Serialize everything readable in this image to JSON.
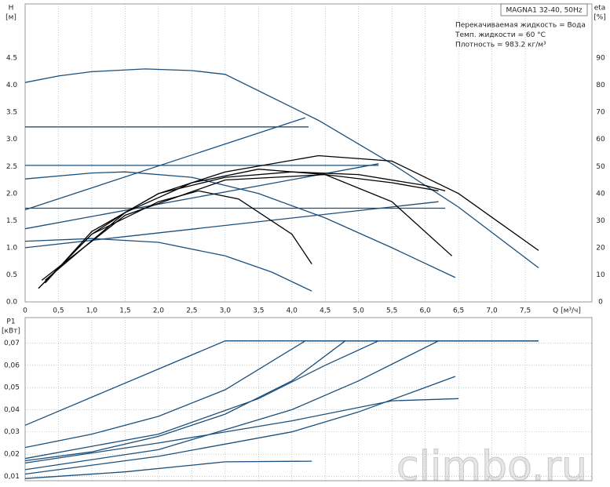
{
  "watermark": "climbo.ru",
  "chart_data": [
    {
      "type": "line",
      "title": "MAGNA1 32-40, 50Hz",
      "annotations": [
        "Перекачиваемая жидкость = Вода",
        "Темп. жидкости = 60 °C",
        "Плотность = 983.2 кг/м³"
      ],
      "y_label": "H",
      "y_unit": "[м]",
      "y2_label": "eta",
      "y2_unit": "[%]",
      "x_label": "Q [м³/ч]",
      "grid": "x",
      "xlim": [
        0,
        8.5
      ],
      "xticks": [
        0,
        {
          "value": 0.5,
          "label": "0,5"
        },
        {
          "value": 1,
          "label": "1,0"
        },
        {
          "value": 1.5,
          "label": "1,5"
        },
        {
          "value": 2,
          "label": "2,0"
        },
        {
          "value": 2.5,
          "label": "2,5"
        },
        {
          "value": 3,
          "label": "3,0"
        },
        {
          "value": 3.5,
          "label": "3,5"
        },
        {
          "value": 4,
          "label": "4,0"
        },
        {
          "value": 4.5,
          "label": "4,5"
        },
        {
          "value": 5,
          "label": "5,0"
        },
        {
          "value": 5.5,
          "label": "5,5"
        },
        {
          "value": 6,
          "label": "6,0"
        },
        {
          "value": 6.5,
          "label": "6,5"
        },
        {
          "value": 7,
          "label": "7,0"
        },
        {
          "value": 7.5,
          "label": "7,5"
        }
      ],
      "ylim": [
        0,
        5.5
      ],
      "yticks": [
        {
          "value": 0,
          "label": "0.0"
        },
        0.5,
        {
          "value": 1,
          "label": "1.0"
        },
        1.5,
        {
          "value": 2,
          "label": "2.0"
        },
        2.5,
        {
          "value": 3,
          "label": "3.0"
        },
        3.5,
        {
          "value": 4,
          "label": "4.0"
        },
        4.5
      ],
      "y2lim": [
        0,
        110
      ],
      "y2ticks": [
        0,
        10,
        20,
        30,
        40,
        50,
        60,
        70,
        80,
        90
      ],
      "series": [
        {
          "color": "#1b4f7c",
          "x": [
            0,
            0.5,
            1,
            1.8,
            2.5,
            3,
            4.4,
            5.5,
            6.5,
            7.7
          ],
          "values": [
            4.05,
            4.17,
            4.25,
            4.3,
            4.27,
            4.2,
            3.35,
            2.55,
            1.75,
            0.63
          ]
        },
        {
          "color": "#1b4f7c",
          "x": [
            0,
            4.25
          ],
          "values": [
            3.23,
            3.23
          ]
        },
        {
          "color": "#1b4f7c",
          "x": [
            0,
            5.3
          ],
          "values": [
            2.52,
            2.52
          ]
        },
        {
          "color": "#1b4f7c",
          "x": [
            0,
            6.3
          ],
          "values": [
            1.73,
            1.73
          ]
        },
        {
          "color": "#1b4f7c",
          "x": [
            0,
            4.2
          ],
          "values": [
            1.7,
            3.4
          ]
        },
        {
          "color": "#1b4f7c",
          "x": [
            0,
            5.3
          ],
          "values": [
            1.35,
            2.55
          ]
        },
        {
          "color": "#1b4f7c",
          "x": [
            0,
            6.2
          ],
          "values": [
            1.0,
            1.85
          ]
        },
        {
          "color": "#1b4f7c",
          "x": [
            0,
            1,
            1.5,
            2.5,
            3.5,
            4.5,
            5.5,
            6.45
          ],
          "values": [
            2.27,
            2.38,
            2.4,
            2.3,
            2.0,
            1.55,
            1.0,
            0.45
          ]
        },
        {
          "color": "#1b4f7c",
          "x": [
            0,
            1,
            2,
            3,
            3.7,
            4.3
          ],
          "values": [
            1.12,
            1.17,
            1.1,
            0.85,
            0.55,
            0.2
          ]
        },
        {
          "color": "#000000",
          "axis": "y2",
          "x": [
            0.2,
            0.6,
            1,
            1.5,
            2,
            3,
            4.4,
            5.5,
            6.5,
            7.7
          ],
          "values": [
            5,
            15,
            25,
            33,
            40,
            48,
            54,
            52,
            40,
            19
          ]
        },
        {
          "color": "#000000",
          "axis": "y2",
          "x": [
            0.3,
            1,
            2,
            3,
            4,
            5,
            6,
            6.3
          ],
          "values": [
            7,
            26,
            40,
            46,
            48,
            47,
            43,
            41
          ]
        },
        {
          "color": "#000000",
          "axis": "y2",
          "x": [
            0.25,
            1.5,
            3,
            4.5,
            5.5,
            6.2
          ],
          "values": [
            8,
            32,
            45,
            47,
            44,
            41
          ]
        },
        {
          "color": "#000000",
          "axis": "y2",
          "x": [
            0.3,
            1.5,
            2.5,
            3.5,
            4.5,
            5.5,
            6.4
          ],
          "values": [
            8,
            33,
            44,
            49,
            47,
            37,
            17
          ]
        },
        {
          "color": "#000000",
          "axis": "y2",
          "x": [
            0.2,
            1,
            2,
            2.6,
            3.2,
            4,
            4.3
          ],
          "values": [
            5,
            25,
            37,
            41,
            38,
            25,
            14
          ]
        }
      ]
    },
    {
      "type": "line",
      "y_label": "P1",
      "y_unit": "[кВт]",
      "grid": "both",
      "xlim": [
        0,
        8.5
      ],
      "ylim": [
        0.008,
        0.0815
      ],
      "yticks": [
        {
          "value": 0.01,
          "label": "0,01"
        },
        {
          "value": 0.02,
          "label": "0,02"
        },
        {
          "value": 0.03,
          "label": "0,03"
        },
        {
          "value": 0.04,
          "label": "0,04"
        },
        {
          "value": 0.05,
          "label": "0,05"
        },
        {
          "value": 0.06,
          "label": "0,06"
        },
        {
          "value": 0.07,
          "label": "0,07"
        }
      ],
      "series": [
        {
          "color": "#1b4f7c",
          "x": [
            0,
            3,
            7.7
          ],
          "values": [
            0.033,
            0.071,
            0.071
          ]
        },
        {
          "color": "#1b4f7c",
          "x": [
            0,
            1,
            2,
            3,
            4.2,
            7.7
          ],
          "values": [
            0.023,
            0.029,
            0.037,
            0.049,
            0.071,
            0.071
          ]
        },
        {
          "color": "#1b4f7c",
          "x": [
            0,
            1,
            2,
            3,
            4,
            4.8,
            7.7
          ],
          "values": [
            0.017,
            0.021,
            0.028,
            0.038,
            0.053,
            0.071,
            0.071
          ]
        },
        {
          "color": "#1b4f7c",
          "x": [
            0,
            2,
            3.5,
            4.5,
            5.3,
            7.7
          ],
          "values": [
            0.018,
            0.029,
            0.045,
            0.06,
            0.071,
            0.071
          ]
        },
        {
          "color": "#1b4f7c",
          "x": [
            0,
            2,
            4,
            5,
            6.2,
            7.7
          ],
          "values": [
            0.013,
            0.022,
            0.04,
            0.053,
            0.071,
            0.071
          ]
        },
        {
          "color": "#1b4f7c",
          "x": [
            0,
            2,
            4,
            5,
            6,
            6.45
          ],
          "values": [
            0.011,
            0.019,
            0.03,
            0.039,
            0.05,
            0.055
          ]
        },
        {
          "color": "#1b4f7c",
          "x": [
            0,
            2,
            4,
            5.5,
            6.5
          ],
          "values": [
            0.016,
            0.025,
            0.035,
            0.044,
            0.045
          ]
        },
        {
          "color": "#1b4f7c",
          "x": [
            0,
            1.5,
            3,
            4.3
          ],
          "values": [
            0.009,
            0.012,
            0.0165,
            0.0168
          ]
        }
      ]
    }
  ]
}
